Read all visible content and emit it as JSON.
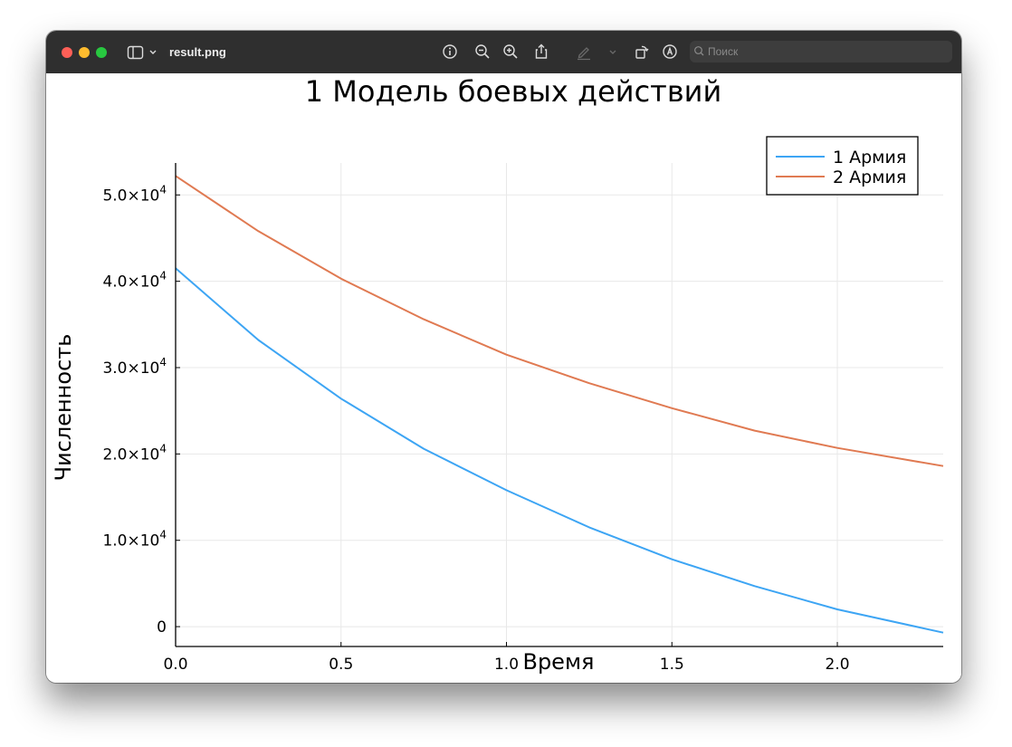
{
  "window": {
    "filename": "result.png",
    "search_placeholder": "Поиск"
  },
  "icons": [
    "sidebar-icon",
    "chevron-down-icon",
    "info-icon",
    "zoom-out-icon",
    "zoom-in-icon",
    "share-icon",
    "markup-pen-icon",
    "rotate-icon",
    "annotate-icon",
    "search-icon"
  ],
  "chart_data": {
    "type": "line",
    "title": "1 Модель боевых действий",
    "xlabel": "Время",
    "ylabel": "Численность",
    "xlim": [
      0,
      2.32
    ],
    "ylim": [
      -2300,
      53700
    ],
    "xticks": [
      0.0,
      0.5,
      1.0,
      1.5,
      2.0
    ],
    "xtick_labels": [
      "0.0",
      "0.5",
      "1.0",
      "1.5",
      "2.0"
    ],
    "yticks": [
      0,
      10000,
      20000,
      30000,
      40000,
      50000
    ],
    "ytick_labels": [
      {
        "mantissa": "0",
        "exp": ""
      },
      {
        "mantissa": "1.0×10",
        "exp": "4"
      },
      {
        "mantissa": "2.0×10",
        "exp": "4"
      },
      {
        "mantissa": "3.0×10",
        "exp": "4"
      },
      {
        "mantissa": "4.0×10",
        "exp": "4"
      },
      {
        "mantissa": "5.0×10",
        "exp": "4"
      }
    ],
    "grid": true,
    "legend_position": "top-right",
    "x": [
      0.0,
      0.25,
      0.5,
      0.75,
      1.0,
      1.25,
      1.5,
      1.75,
      2.0,
      2.32
    ],
    "series": [
      {
        "name": "1 Армия",
        "color": "#3da5f4",
        "values": [
          41500,
          33200,
          26400,
          20600,
          15800,
          11500,
          7800,
          4700,
          2000,
          -700
        ]
      },
      {
        "name": "2 Армия",
        "color": "#e07a52",
        "values": [
          52200,
          45800,
          40300,
          35600,
          31500,
          28200,
          25300,
          22700,
          20700,
          18600
        ]
      }
    ]
  }
}
